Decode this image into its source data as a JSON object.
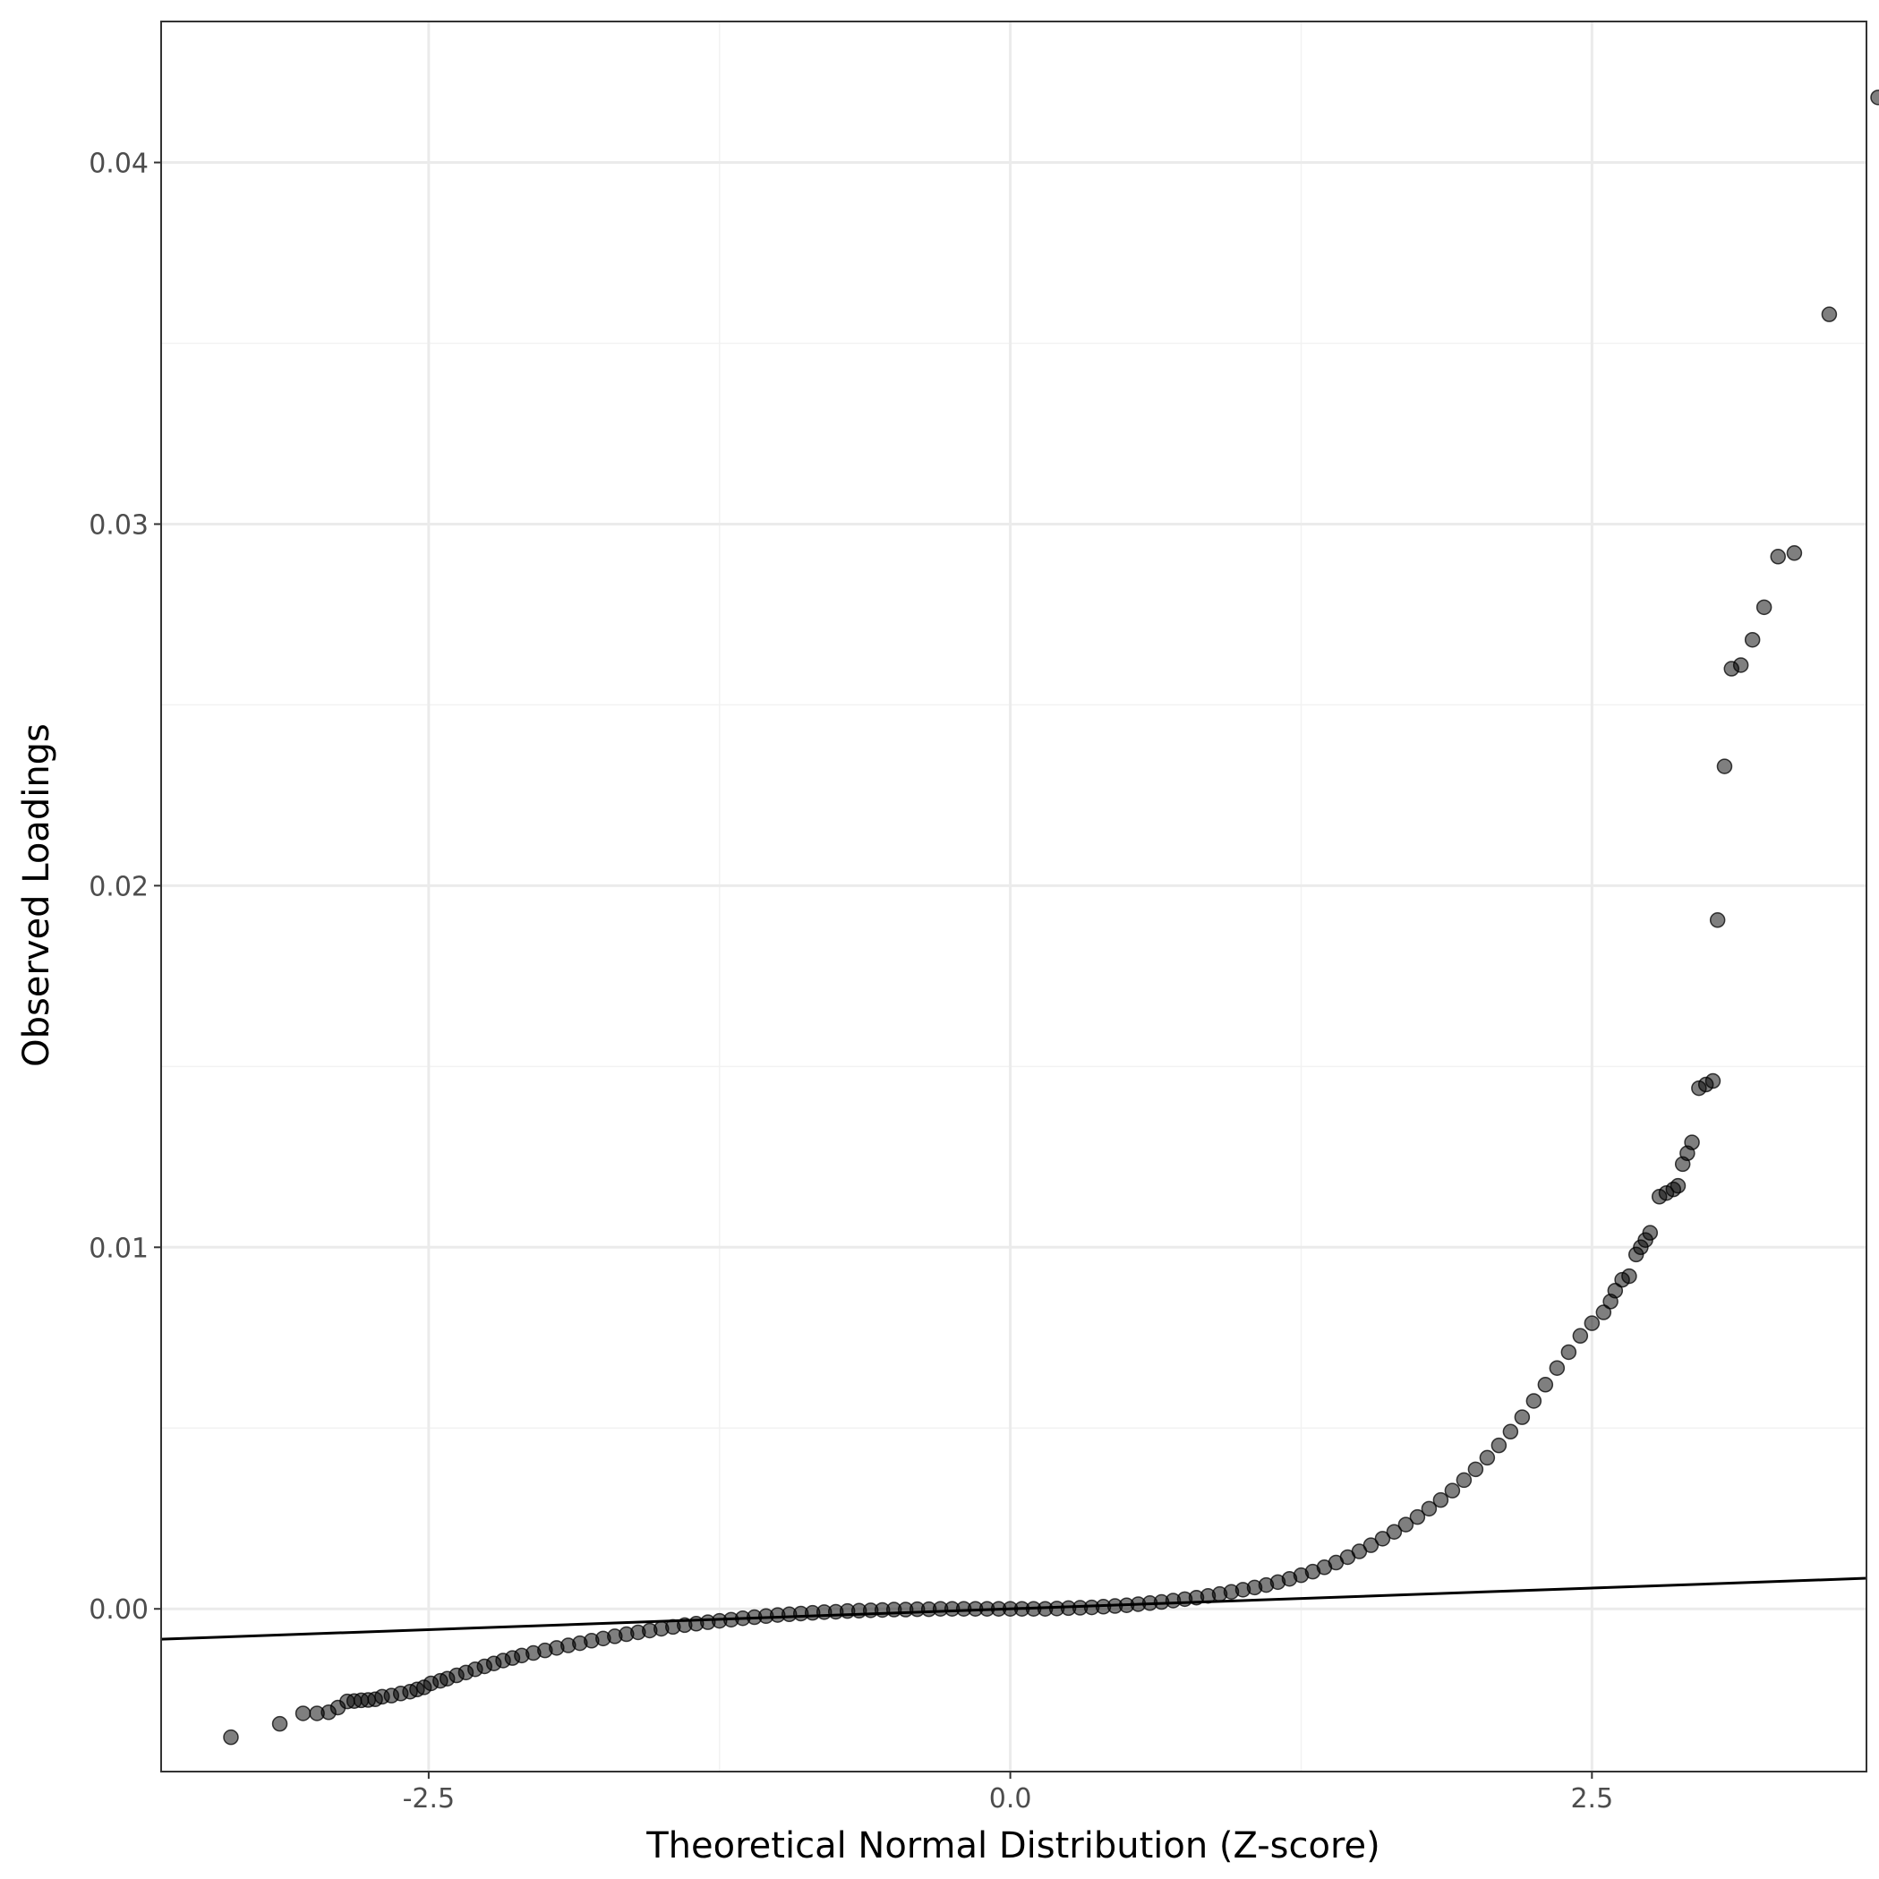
{
  "colors": {
    "background": "#ffffff",
    "panel_border": "#333333",
    "grid_major": "#ebebeb",
    "grid_minor": "#f2f2f2",
    "tick_text": "#4d4d4d",
    "point_fill": "#000000",
    "reference_line": "#000000"
  },
  "chart_data": {
    "type": "scatter",
    "title": "",
    "xlabel": "Theoretical Normal Distribution (Z-score)",
    "ylabel": "Observed Loadings",
    "xlim": [
      -3.65,
      3.68
    ],
    "ylim": [
      -0.0045,
      0.0439
    ],
    "x_ticks": [
      -2.5,
      0.0,
      2.5
    ],
    "x_tick_labels": [
      "-2.5",
      "0.0",
      "2.5"
    ],
    "y_ticks": [
      0.0,
      0.01,
      0.02,
      0.03,
      0.04
    ],
    "y_tick_labels": [
      "0.00",
      "0.01",
      "0.02",
      "0.03",
      "0.04"
    ],
    "grid": true,
    "legend": "none",
    "reference_line": {
      "slope": 0.00023,
      "intercept": 0.0
    },
    "point_alpha": 0.5,
    "series": [
      {
        "points": [
          [
            -3.35,
            -0.00355
          ],
          [
            -3.14,
            -0.00318
          ],
          [
            -3.04,
            -0.00289
          ],
          [
            -2.98,
            -0.00289
          ],
          [
            -2.93,
            -0.00286
          ],
          [
            -2.89,
            -0.00273
          ],
          [
            -2.85,
            -0.00256
          ],
          [
            -2.82,
            -0.00255
          ],
          [
            -2.79,
            -0.00253
          ],
          [
            -2.76,
            -0.00252
          ],
          [
            -2.73,
            -0.0025
          ],
          [
            -2.7,
            -0.00243
          ],
          [
            -2.66,
            -0.0024
          ],
          [
            -2.62,
            -0.00234
          ],
          [
            -2.58,
            -0.00229
          ],
          [
            -2.55,
            -0.00223
          ],
          [
            -2.52,
            -0.00217
          ],
          [
            -2.49,
            -0.00206
          ],
          [
            -2.45,
            -0.00199
          ],
          [
            -2.42,
            -0.00193
          ],
          [
            -2.38,
            -0.00184
          ],
          [
            -2.34,
            -0.00176
          ],
          [
            -2.3,
            -0.00167
          ],
          [
            -2.26,
            -0.00159
          ],
          [
            -2.22,
            -0.00151
          ],
          [
            -2.18,
            -0.00143
          ],
          [
            -2.14,
            -0.00136
          ],
          [
            -2.1,
            -0.00129
          ],
          [
            -2.05,
            -0.00122
          ],
          [
            -2.0,
            -0.00115
          ],
          [
            -1.95,
            -0.00108
          ],
          [
            -1.9,
            -0.00101
          ],
          [
            -1.85,
            -0.00095
          ],
          [
            -1.8,
            -0.00088
          ],
          [
            -1.75,
            -0.00082
          ],
          [
            -1.7,
            -0.00076
          ],
          [
            -1.65,
            -0.0007
          ],
          [
            -1.6,
            -0.00065
          ],
          [
            -1.55,
            -0.0006
          ],
          [
            -1.5,
            -0.00055
          ],
          [
            -1.45,
            -0.0005
          ],
          [
            -1.4,
            -0.00045
          ],
          [
            -1.35,
            -0.00041
          ],
          [
            -1.3,
            -0.00037
          ],
          [
            -1.25,
            -0.00033
          ],
          [
            -1.2,
            -0.0003
          ],
          [
            -1.15,
            -0.00026
          ],
          [
            -1.1,
            -0.00023
          ],
          [
            -1.05,
            -0.0002
          ],
          [
            -1.0,
            -0.00017
          ],
          [
            -0.95,
            -0.00015
          ],
          [
            -0.9,
            -0.00013
          ],
          [
            -0.85,
            -0.00011
          ],
          [
            -0.8,
            -9e-05
          ],
          [
            -0.75,
            -8e-05
          ],
          [
            -0.7,
            -6e-05
          ],
          [
            -0.65,
            -5e-05
          ],
          [
            -0.6,
            -4e-05
          ],
          [
            -0.55,
            -3e-05
          ],
          [
            -0.5,
            -2e-05
          ],
          [
            -0.45,
            -2e-05
          ],
          [
            -0.4,
            -1e-05
          ],
          [
            -0.35,
            -1e-05
          ],
          [
            -0.3,
            0.0
          ],
          [
            -0.25,
            0.0
          ],
          [
            -0.2,
            0.0
          ],
          [
            -0.15,
            0.0
          ],
          [
            -0.1,
            0.0
          ],
          [
            -0.05,
            0.0
          ],
          [
            0.0,
            0.0
          ],
          [
            0.05,
            0.0
          ],
          [
            0.1,
            0.0
          ],
          [
            0.15,
            0.0
          ],
          [
            0.2,
            1e-05
          ],
          [
            0.25,
            2e-05
          ],
          [
            0.3,
            3e-05
          ],
          [
            0.35,
            4e-05
          ],
          [
            0.4,
            6e-05
          ],
          [
            0.45,
            8e-05
          ],
          [
            0.5,
            0.0001
          ],
          [
            0.55,
            0.00013
          ],
          [
            0.6,
            0.00016
          ],
          [
            0.65,
            0.00019
          ],
          [
            0.7,
            0.00023
          ],
          [
            0.75,
            0.00027
          ],
          [
            0.8,
            0.00031
          ],
          [
            0.85,
            0.00036
          ],
          [
            0.9,
            0.00041
          ],
          [
            0.95,
            0.00047
          ],
          [
            1.0,
            0.00053
          ],
          [
            1.05,
            0.00059
          ],
          [
            1.1,
            0.00066
          ],
          [
            1.15,
            0.00074
          ],
          [
            1.2,
            0.00083
          ],
          [
            1.25,
            0.00093
          ],
          [
            1.3,
            0.00103
          ],
          [
            1.35,
            0.00115
          ],
          [
            1.4,
            0.00128
          ],
          [
            1.45,
            0.00143
          ],
          [
            1.5,
            0.00159
          ],
          [
            1.55,
            0.00176
          ],
          [
            1.6,
            0.00194
          ],
          [
            1.65,
            0.00213
          ],
          [
            1.7,
            0.00233
          ],
          [
            1.75,
            0.00254
          ],
          [
            1.8,
            0.00277
          ],
          [
            1.85,
            0.00301
          ],
          [
            1.9,
            0.00327
          ],
          [
            1.95,
            0.00356
          ],
          [
            2.0,
            0.00386
          ],
          [
            2.05,
            0.00418
          ],
          [
            2.1,
            0.00452
          ],
          [
            2.15,
            0.0049
          ],
          [
            2.2,
            0.0053
          ],
          [
            2.25,
            0.00575
          ],
          [
            2.3,
            0.0062
          ],
          [
            2.35,
            0.00666
          ],
          [
            2.4,
            0.0071
          ],
          [
            2.45,
            0.00755
          ],
          [
            2.5,
            0.0079
          ],
          [
            2.55,
            0.0082
          ],
          [
            2.58,
            0.0085
          ],
          [
            2.6,
            0.0088
          ],
          [
            2.63,
            0.0091
          ],
          [
            2.66,
            0.0092
          ],
          [
            2.69,
            0.0098
          ],
          [
            2.71,
            0.01
          ],
          [
            2.73,
            0.0102
          ],
          [
            2.75,
            0.0104
          ],
          [
            2.79,
            0.0114
          ],
          [
            2.82,
            0.0115
          ],
          [
            2.85,
            0.0116
          ],
          [
            2.87,
            0.0117
          ],
          [
            2.89,
            0.0123
          ],
          [
            2.91,
            0.0126
          ],
          [
            2.93,
            0.0129
          ],
          [
            2.96,
            0.0144
          ],
          [
            2.99,
            0.0145
          ],
          [
            3.02,
            0.0146
          ],
          [
            3.04,
            0.01905
          ],
          [
            3.07,
            0.0233
          ],
          [
            3.1,
            0.026
          ],
          [
            3.14,
            0.0261
          ],
          [
            3.19,
            0.0268
          ],
          [
            3.24,
            0.0277
          ],
          [
            3.3,
            0.0291
          ],
          [
            3.37,
            0.0292
          ],
          [
            3.52,
            0.0358
          ],
          [
            3.73,
            0.0418
          ]
        ]
      }
    ]
  }
}
